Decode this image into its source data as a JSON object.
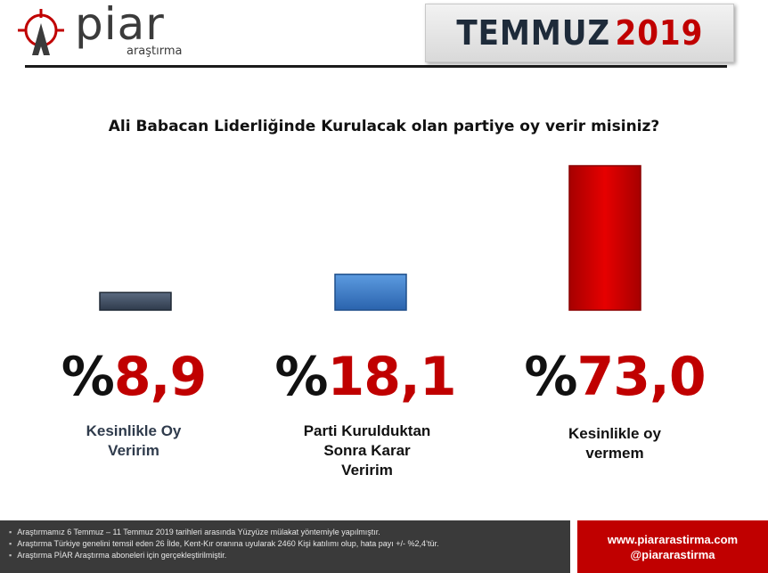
{
  "header": {
    "logo_name": "piar",
    "logo_sub": "araştırma",
    "month": "TEMMUZ",
    "year": "2019"
  },
  "colors": {
    "accent_red": "#c00000",
    "dark_blue_gray": "#2f3b4c",
    "mid_blue": "#2e6fbf"
  },
  "chart_data": {
    "type": "bar",
    "title": "Ali Babacan Liderliğinde Kurulacak olan partiye oy verir misiniz?",
    "categories": [
      "Kesinlikle Oy Veririm",
      "Parti Kurulduktan Sonra Karar Veririm",
      "Kesinlikle oy vermem"
    ],
    "category_lines": [
      [
        "Kesinlikle Oy",
        "Veririm"
      ],
      [
        "Parti Kurulduktan",
        "Sonra Karar",
        "Veririm"
      ],
      [
        "Kesinlikle oy",
        "vermem"
      ]
    ],
    "values": [
      8.9,
      18.1,
      73.0
    ],
    "value_labels": [
      "8,9",
      "18,1",
      "73,0"
    ],
    "percent_symbol": "%",
    "colors": [
      "#2f3b4c",
      "#2e6fbf",
      "#d40000"
    ],
    "label_colors": [
      "#2f3b4c",
      "#111111",
      "#111111"
    ]
  },
  "footer": {
    "lines": [
      "Araştırmamız 6 Temmuz – 11 Temmuz 2019 tarihleri arasında Yüzyüze mülakat yöntemiyle yapılmıştır.",
      "Araştırma Türkiye genelini temsil eden 26 İlde, Kent-Kır oranına uyularak 2460 Kişi katılımı olup, hata payı +/- %2,4’tür.",
      "Araştırma PİAR Araştırma aboneleri için gerçekleştirilmiştir."
    ],
    "website": "www.piararastirma.com",
    "handle": "@piararastirma"
  }
}
